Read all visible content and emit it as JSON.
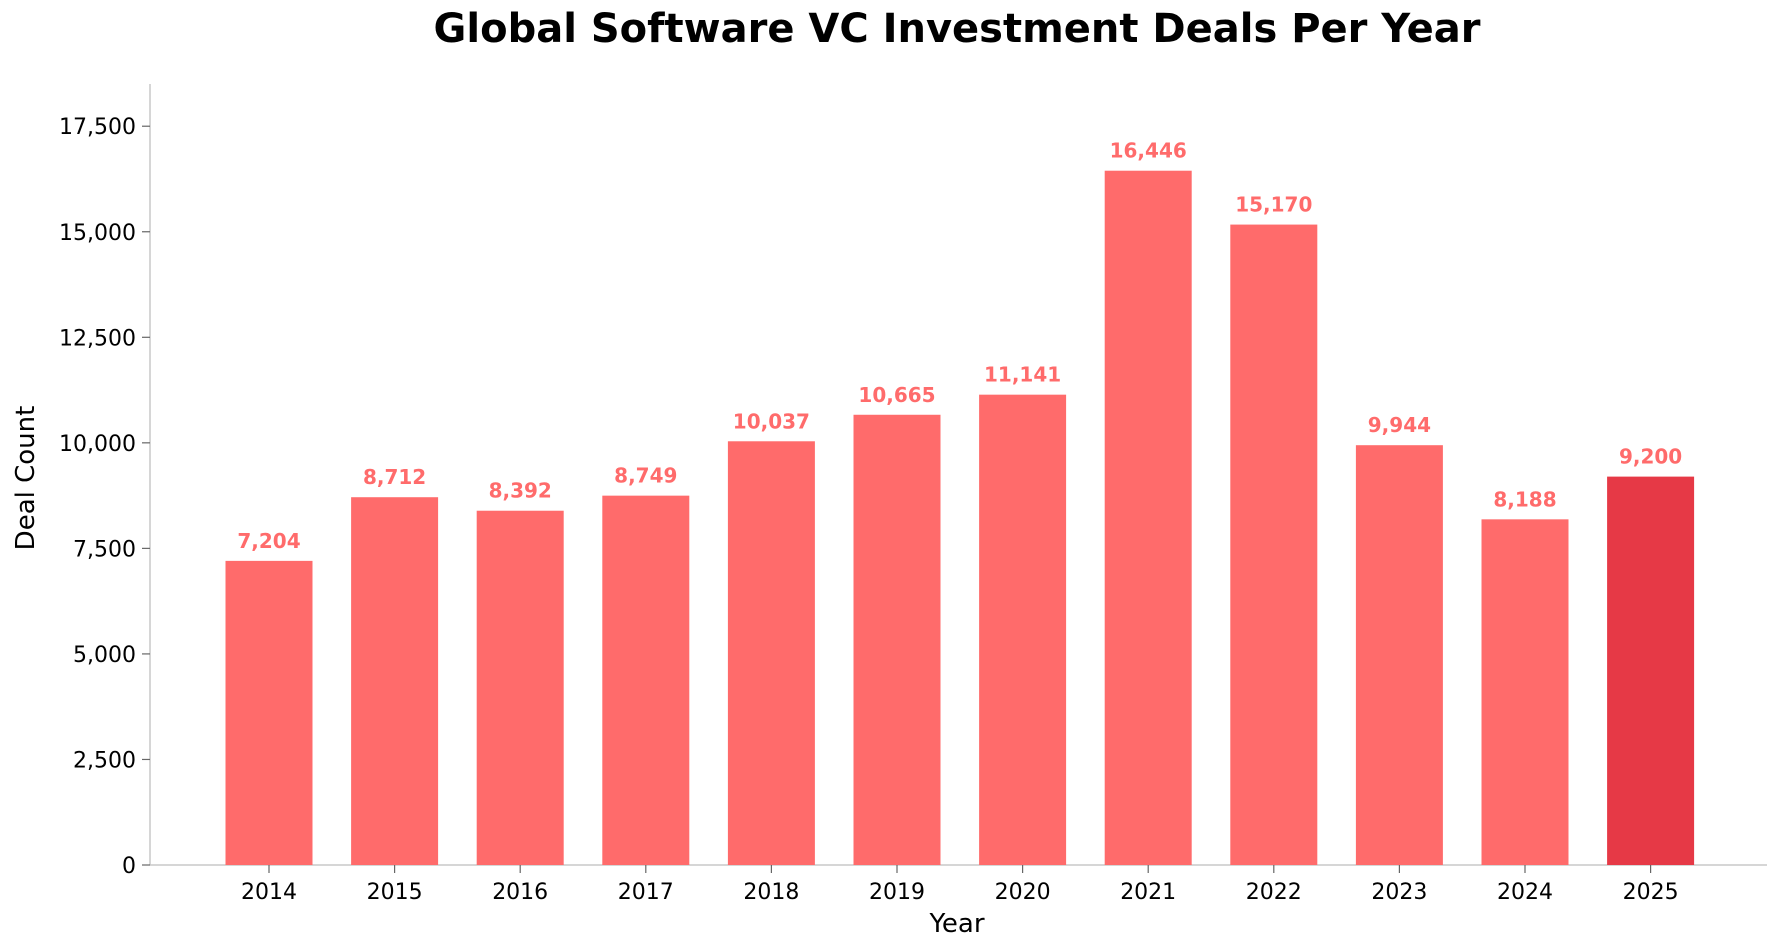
{
  "chart_data": {
    "type": "bar",
    "title": "Global Software VC Investment Deals Per Year",
    "xlabel": "Year",
    "ylabel": "Deal Count",
    "categories": [
      "2014",
      "2015",
      "2016",
      "2017",
      "2018",
      "2019",
      "2020",
      "2021",
      "2022",
      "2023",
      "2024",
      "2025"
    ],
    "values": [
      7204,
      8712,
      8392,
      8749,
      10037,
      10665,
      11141,
      16446,
      15170,
      9944,
      8188,
      9200
    ],
    "value_labels": [
      "7,204",
      "8,712",
      "8,392",
      "8,749",
      "10,037",
      "10,665",
      "11,141",
      "16,446",
      "15,170",
      "9,944",
      "8,188",
      "9,200"
    ],
    "ylim": [
      0,
      18500
    ],
    "yticks": [
      0,
      2500,
      5000,
      7500,
      10000,
      12500,
      15000,
      17500
    ],
    "ytick_labels": [
      "0",
      "2,500",
      "5,000",
      "7,500",
      "10,000",
      "12,500",
      "15,000",
      "17,500"
    ],
    "grid": false,
    "colors": {
      "bar": "#ff6b6b",
      "highlight_bar": "#e63946",
      "data_label": "#ff6b6b",
      "highlight_data_label": "#ff6b6b"
    },
    "highlight_categories": [
      "2025"
    ]
  }
}
